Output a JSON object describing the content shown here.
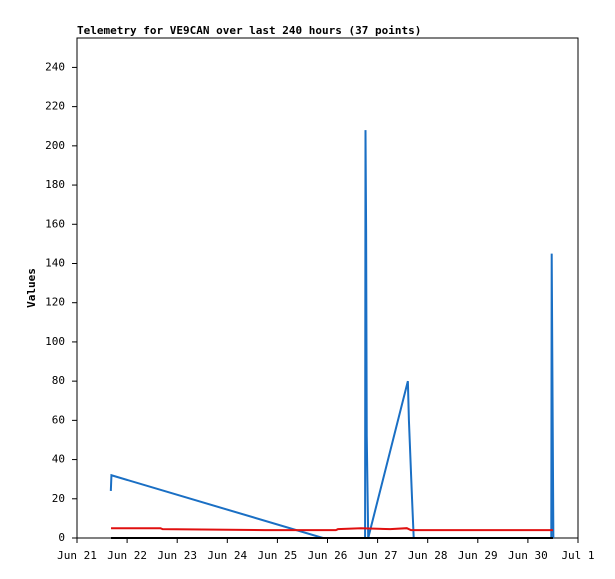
{
  "chart_data": {
    "type": "line",
    "title": "Telemetry for VE9CAN over last 240 hours (37 points)",
    "y_label": "Values",
    "xlim": [
      0,
      240
    ],
    "xticks": [
      {
        "value": 0,
        "label": "Jun 21"
      },
      {
        "value": 24,
        "label": "Jun 22"
      },
      {
        "value": 48,
        "label": "Jun 23"
      },
      {
        "value": 72,
        "label": "Jun 24"
      },
      {
        "value": 96,
        "label": "Jun 25"
      },
      {
        "value": 120,
        "label": "Jun 26"
      },
      {
        "value": 144,
        "label": "Jun 27"
      },
      {
        "value": 168,
        "label": "Jun 28"
      },
      {
        "value": 192,
        "label": "Jun 29"
      },
      {
        "value": 216,
        "label": "Jun 30"
      },
      {
        "value": 240,
        "label": "Jul 1"
      }
    ],
    "ylim": [
      0,
      255
    ],
    "yticks": [
      0,
      20,
      40,
      60,
      80,
      100,
      120,
      140,
      160,
      180,
      200,
      220,
      240
    ],
    "grid": false,
    "series": [
      {
        "color": "#1a6fc4",
        "x": [
          16.2,
          16.5,
          117.8,
          138.0,
          138.2,
          138.5,
          138.8,
          139.5,
          158.5,
          159.0,
          160.5,
          161.3,
          227.2,
          227.4,
          227.8,
          228.2
        ],
        "values": [
          24,
          32,
          0,
          0,
          208,
          156,
          52,
          0,
          80,
          60,
          20,
          0,
          0,
          145,
          72,
          0
        ]
      },
      {
        "color": "#e01010",
        "x": [
          16.3,
          40,
          41,
          90,
          124,
          125,
          136,
          150,
          158,
          160,
          228
        ],
        "values": [
          5,
          5,
          4.5,
          4,
          4,
          4.5,
          5,
          4.5,
          5,
          4,
          4
        ]
      },
      {
        "color": "#000000",
        "x": [
          16.3,
          228
        ],
        "values": [
          0,
          0
        ]
      }
    ]
  }
}
